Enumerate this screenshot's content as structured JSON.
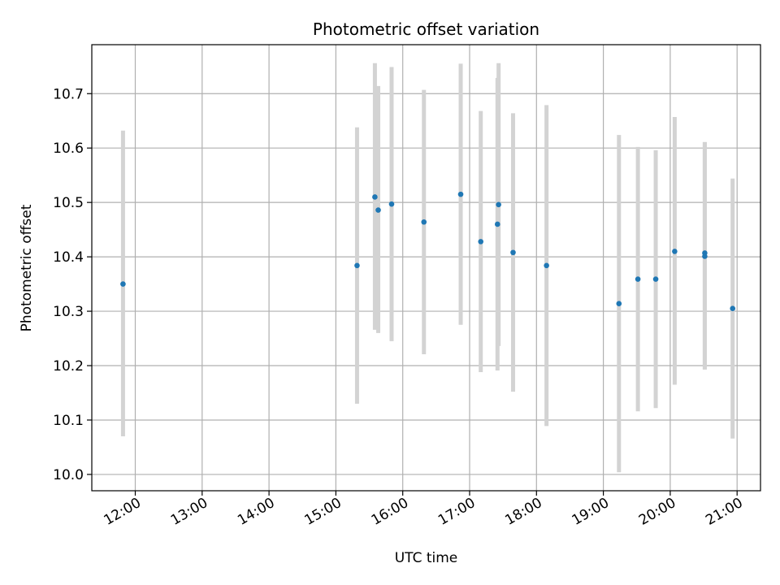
{
  "chart_data": {
    "type": "scatter",
    "title": "Photometric offset variation",
    "xlabel": "UTC time",
    "ylabel": "Photometric offset",
    "x_tick_labels": [
      "12:00",
      "13:00",
      "14:00",
      "15:00",
      "16:00",
      "17:00",
      "18:00",
      "19:00",
      "20:00",
      "21:00"
    ],
    "x_ticks_hours": [
      12,
      13,
      14,
      15,
      16,
      17,
      18,
      19,
      20,
      21
    ],
    "y_tick_labels": [
      "10.0",
      "10.1",
      "10.2",
      "10.3",
      "10.4",
      "10.5",
      "10.6",
      "10.7"
    ],
    "y_ticks": [
      10.0,
      10.1,
      10.2,
      10.3,
      10.4,
      10.5,
      10.6,
      10.7
    ],
    "xlim_hours": [
      11.35,
      21.35
    ],
    "ylim": [
      9.97,
      10.79
    ],
    "grid": true,
    "colors": {
      "points": "#1f77b4",
      "errorbars": "#d3d3d3",
      "grid": "#b0b0b0"
    },
    "series": [
      {
        "points": [
          {
            "time": "11:49",
            "y": 10.35,
            "ylow": 10.07,
            "yhigh": 10.632
          },
          {
            "time": "15:19",
            "y": 10.384,
            "ylow": 10.13,
            "yhigh": 10.638
          },
          {
            "time": "15:35",
            "y": 10.51,
            "ylow": 10.266,
            "yhigh": 10.756
          },
          {
            "time": "15:38",
            "y": 10.486,
            "ylow": 10.26,
            "yhigh": 10.714
          },
          {
            "time": "15:50",
            "y": 10.497,
            "ylow": 10.245,
            "yhigh": 10.749
          },
          {
            "time": "16:19",
            "y": 10.464,
            "ylow": 10.221,
            "yhigh": 10.707
          },
          {
            "time": "16:52",
            "y": 10.515,
            "ylow": 10.275,
            "yhigh": 10.755
          },
          {
            "time": "17:10",
            "y": 10.428,
            "ylow": 10.188,
            "yhigh": 10.668
          },
          {
            "time": "17:25",
            "y": 10.46,
            "ylow": 10.191,
            "yhigh": 10.729
          },
          {
            "time": "17:26",
            "y": 10.496,
            "ylow": 10.236,
            "yhigh": 10.756
          },
          {
            "time": "17:39",
            "y": 10.408,
            "ylow": 10.152,
            "yhigh": 10.664
          },
          {
            "time": "18:09",
            "y": 10.384,
            "ylow": 10.089,
            "yhigh": 10.679
          },
          {
            "time": "19:14",
            "y": 10.314,
            "ylow": 10.004,
            "yhigh": 10.624
          },
          {
            "time": "19:31",
            "y": 10.359,
            "ylow": 10.116,
            "yhigh": 10.602
          },
          {
            "time": "19:47",
            "y": 10.359,
            "ylow": 10.122,
            "yhigh": 10.596
          },
          {
            "time": "20:04",
            "y": 10.41,
            "ylow": 10.165,
            "yhigh": 10.657
          },
          {
            "time": "20:31",
            "y": 10.407,
            "ylow": 10.193,
            "yhigh": 10.611
          },
          {
            "time": "20:31",
            "y": 10.401,
            "ylow": 10.193,
            "yhigh": 10.611
          },
          {
            "time": "20:56",
            "y": 10.305,
            "ylow": 10.066,
            "yhigh": 10.544
          }
        ]
      }
    ]
  }
}
